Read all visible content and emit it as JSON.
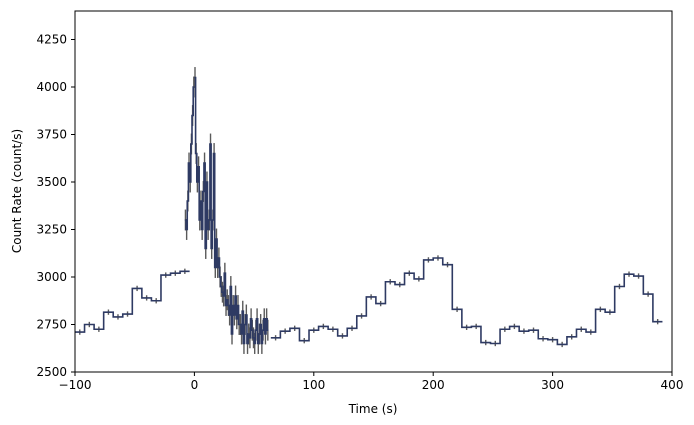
{
  "colors": {
    "line": "#2e3a63",
    "error": "#5a5a5a",
    "axis": "#000000",
    "background": "#ffffff"
  },
  "chart_data": {
    "type": "line",
    "style": "step",
    "xlabel": "Time (s)",
    "ylabel": "Count Rate (count/s)",
    "xlim": [
      -100,
      400
    ],
    "ylim": [
      2500,
      4400
    ],
    "xticks": [
      -100,
      0,
      100,
      200,
      300,
      400
    ],
    "yticks": [
      2500,
      2750,
      3000,
      3250,
      3500,
      3750,
      4000,
      4250
    ],
    "grid": false,
    "series": [
      {
        "name": "",
        "coarse": {
          "bin_width": 8,
          "segments": [
            {
              "start": -100,
              "values": [
                2710,
                2750,
                2725,
                2815,
                2790,
                2805,
                2940,
                2890,
                2875,
                3010,
                3020,
                3030
              ]
            },
            {
              "start": 64,
              "values": [
                2680,
                2715,
                2730,
                2665,
                2720,
                2740,
                2725,
                2690,
                2730,
                2795,
                2895,
                2860,
                2975,
                2960,
                3020,
                2990,
                3090,
                3100,
                3065,
                2830,
                2735,
                2740,
                2655,
                2650,
                2725,
                2740,
                2715,
                2720,
                2675,
                2670,
                2645,
                2685,
                2725,
                2710,
                2830,
                2815,
                2950,
                3015,
                3005,
                2910,
                2765
              ]
            }
          ],
          "errors": 14
        },
        "fine": {
          "bin_width": 1,
          "start": 0,
          "values": [
            4050,
            3650,
            3500,
            3580,
            3300,
            3400,
            3250,
            3450,
            3600,
            3150,
            3500,
            3250,
            3300,
            3700,
            3150,
            3300,
            3650,
            3050,
            3200,
            3050,
            3100,
            3000,
            2950,
            2920,
            2900,
            3020,
            2850,
            2880,
            2850,
            2800,
            2950,
            2700,
            2850,
            2800,
            2900,
            2780,
            2850,
            2750,
            2750,
            2700,
            2820,
            2650,
            2750,
            2800,
            2650,
            2700,
            2680,
            2780,
            2720,
            2680,
            2650,
            2720,
            2780,
            2650,
            2700,
            2750,
            2650,
            2720,
            2780,
            2700,
            2780,
            2720
          ],
          "errors": 55
        },
        "rise": {
          "start": -8,
          "values": [
            3300,
            3250,
            3400,
            3600,
            3500,
            3700,
            3850,
            4000
          ],
          "errors": 55
        }
      }
    ]
  }
}
